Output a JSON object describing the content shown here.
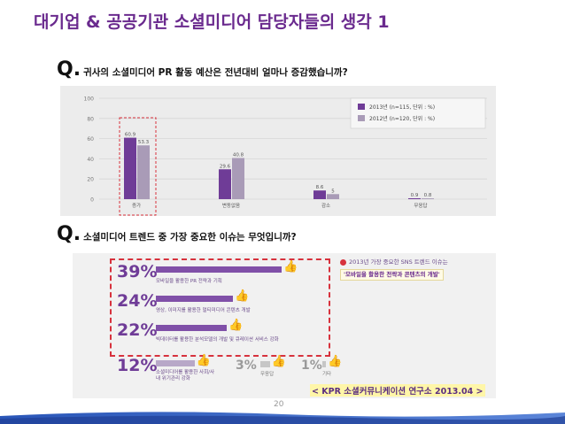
{
  "slide": {
    "title": "대기업 & 공공기관 소셜미디어 담당자들의 생각 1",
    "q1_mark": "Q.",
    "q1_text": "귀사의 소셜미디어 PR 활동 예산은 전년대비 얼마나 증감했습니까?",
    "q2_mark": "Q.",
    "q2_text": "소셜미디어 트렌드 중 가장 중요한 이슈는 무엇입니까?",
    "source": "< KPR 소셜커뮤니케이션 연구소 2013.04 >",
    "page_number": "20"
  },
  "colors": {
    "title": "#6a2a8e",
    "series_2013": "#6f3c97",
    "series_2012": "#a99bb7",
    "highlight_dash": "#d7323d"
  },
  "chart_data": [
    {
      "type": "bar",
      "categories": [
        "증가",
        "변동없음",
        "감소",
        "무응답"
      ],
      "series": [
        {
          "name": "2013년 (n=115, 단위 : %)",
          "values": [
            60.9,
            29.6,
            8.6,
            0.9
          ]
        },
        {
          "name": "2012년 (n=120, 단위 : %)",
          "values": [
            53.3,
            40.8,
            5,
            0.8
          ]
        }
      ],
      "value_labels": [
        [
          "60.9",
          "29.6",
          "8.6",
          "0.9"
        ],
        [
          "53.3",
          "40.8",
          "5",
          "0.8"
        ]
      ],
      "yticks": [
        "0",
        "20",
        "40",
        "60",
        "80",
        "100"
      ],
      "ylim": [
        0,
        100
      ],
      "legend_position": "top-right",
      "grid": true
    },
    {
      "type": "bar",
      "orientation": "horizontal",
      "callout": {
        "heading": "2013년 가장 중요한 SNS 트렌드 이슈는",
        "highlight": "'모바일을 활용한 전략과 콘텐츠의 개발'"
      },
      "items": [
        {
          "label": "39%",
          "value": 39,
          "desc": "모바일을 활용한 PR 전략과 기획"
        },
        {
          "label": "24%",
          "value": 24,
          "desc": "영상, 이미지를 활용한 멀티미디어 콘텐츠 개발"
        },
        {
          "label": "22%",
          "value": 22,
          "desc": "빅데이터를 활용한 분석모델의 개발 및 큐레이션 서비스 강화"
        },
        {
          "label": "12%",
          "value": 12,
          "desc": "소셜미디어를 활용한 사회/사내 위기관리 강화"
        },
        {
          "label": "3%",
          "value": 3,
          "desc": "무응답"
        },
        {
          "label": "1%",
          "value": 1,
          "desc": "기타"
        }
      ]
    }
  ]
}
